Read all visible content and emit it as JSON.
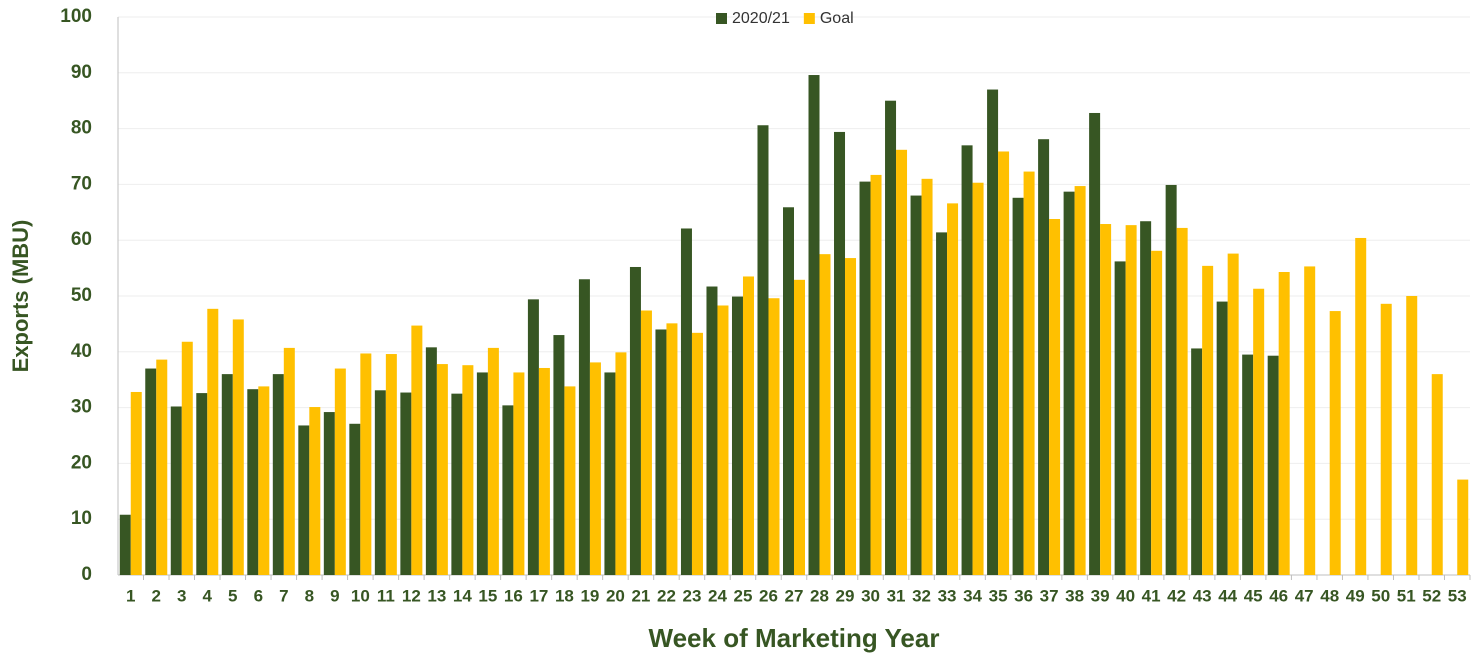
{
  "chart_data": {
    "type": "bar",
    "x_label": "Week of Marketing Year",
    "y_label": "Exports (MBU)",
    "categories": [
      "1",
      "2",
      "3",
      "4",
      "5",
      "6",
      "7",
      "8",
      "9",
      "10",
      "11",
      "12",
      "13",
      "14",
      "15",
      "16",
      "17",
      "18",
      "19",
      "20",
      "21",
      "22",
      "23",
      "24",
      "25",
      "26",
      "27",
      "28",
      "29",
      "30",
      "31",
      "32",
      "33",
      "34",
      "35",
      "36",
      "37",
      "38",
      "39",
      "40",
      "41",
      "42",
      "43",
      "44",
      "45",
      "46",
      "47",
      "48",
      "49",
      "50",
      "51",
      "52",
      "53"
    ],
    "series": [
      {
        "name": "2020/21",
        "color": "#375623",
        "values": [
          10.8,
          37,
          30.2,
          32.6,
          36,
          33.3,
          36,
          26.8,
          29.2,
          27.1,
          33.1,
          32.7,
          40.8,
          32.5,
          36.3,
          30.4,
          49.4,
          43,
          53,
          36.3,
          55.2,
          44,
          62.1,
          51.7,
          49.9,
          80.6,
          65.9,
          89.6,
          79.4,
          70.5,
          85,
          68,
          61.4,
          77,
          87,
          67.6,
          78.1,
          68.7,
          82.8,
          56.2,
          63.4,
          69.9,
          40.6,
          49,
          39.5,
          39.3,
          null,
          null,
          null,
          null,
          null,
          null,
          null
        ]
      },
      {
        "name": "Goal",
        "color": "#ffc000",
        "values": [
          32.8,
          38.6,
          41.8,
          47.7,
          45.8,
          33.8,
          40.7,
          30.1,
          37,
          39.7,
          39.6,
          44.7,
          37.8,
          37.6,
          40.7,
          36.3,
          37.1,
          33.8,
          38.1,
          39.9,
          47.4,
          45.1,
          43.4,
          48.3,
          53.5,
          49.6,
          52.9,
          57.5,
          56.8,
          71.7,
          76.2,
          71,
          66.6,
          70.3,
          75.9,
          72.3,
          63.8,
          69.7,
          62.9,
          62.7,
          58.1,
          62.2,
          55.4,
          57.6,
          51.3,
          54.3,
          55.3,
          47.3,
          60.4,
          48.6,
          50,
          36,
          17.1
        ]
      }
    ],
    "ylim": [
      0,
      100
    ],
    "yticks": [
      0,
      10,
      20,
      30,
      40,
      50,
      60,
      70,
      80,
      90,
      100
    ],
    "grid": true,
    "legend": "top"
  }
}
